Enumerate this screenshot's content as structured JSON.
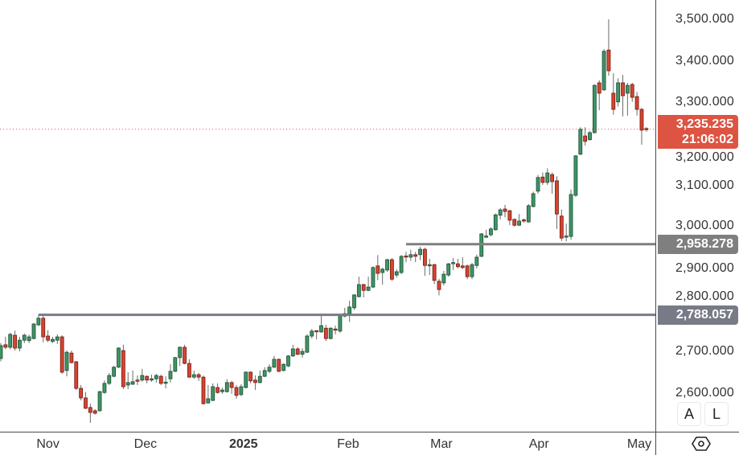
{
  "chart_data": {
    "type": "candlestick",
    "title": "",
    "price_axis": {
      "ticks": [
        "2,600.000",
        "2,700.000",
        "2,800.000",
        "2,900.000",
        "3,000.000",
        "3,100.000",
        "3,200.000",
        "3,300.000",
        "3,400.000",
        "3,500.000"
      ],
      "tick_values": [
        2600,
        2700,
        2800,
        2900,
        3000,
        3100,
        3200,
        3300,
        3400,
        3500
      ],
      "ylim": [
        2506.6,
        3546.5
      ]
    },
    "time_axis": {
      "labels": [
        {
          "text": "Nov",
          "candle_index": 10,
          "year": false
        },
        {
          "text": "Dec",
          "candle_index": 30.7,
          "year": false
        },
        {
          "text": "2025",
          "candle_index": 51.5,
          "year": true
        },
        {
          "text": "Feb",
          "candle_index": 73.7,
          "year": false
        },
        {
          "text": "Mar",
          "candle_index": 93.5,
          "year": false
        },
        {
          "text": "Apr",
          "candle_index": 114.2,
          "year": false
        },
        {
          "text": "May",
          "candle_index": 135.5,
          "year": false
        }
      ]
    },
    "candles": [
      [
        2683,
        2720,
        2676,
        2714
      ],
      [
        2716,
        2735,
        2705,
        2710
      ],
      [
        2710,
        2745,
        2705,
        2741
      ],
      [
        2739,
        2750,
        2702,
        2708
      ],
      [
        2708,
        2735,
        2700,
        2727
      ],
      [
        2727,
        2743,
        2720,
        2739
      ],
      [
        2726,
        2740,
        2720,
        2735
      ],
      [
        2731,
        2768,
        2729,
        2766
      ],
      [
        2764,
        2788,
        2761,
        2780
      ],
      [
        2780,
        2788,
        2722,
        2735
      ],
      [
        2737,
        2751,
        2722,
        2727
      ],
      [
        2724,
        2735,
        2720,
        2729
      ],
      [
        2727,
        2741,
        2718,
        2735
      ],
      [
        2735,
        2739,
        2646,
        2650
      ],
      [
        2654,
        2702,
        2640,
        2698
      ],
      [
        2696,
        2702,
        2671,
        2673
      ],
      [
        2675,
        2677,
        2607,
        2611
      ],
      [
        2611,
        2619,
        2582,
        2588
      ],
      [
        2588,
        2602,
        2561,
        2563
      ],
      [
        2565,
        2574,
        2528,
        2553
      ],
      [
        2557,
        2561,
        2548,
        2551
      ],
      [
        2557,
        2605,
        2555,
        2603
      ],
      [
        2601,
        2630,
        2598,
        2623
      ],
      [
        2623,
        2648,
        2619,
        2642
      ],
      [
        2640,
        2665,
        2638,
        2662
      ],
      [
        2662,
        2710,
        2660,
        2708
      ],
      [
        2702,
        2716,
        2609,
        2615
      ],
      [
        2619,
        2650,
        2609,
        2625
      ],
      [
        2621,
        2654,
        2619,
        2627
      ],
      [
        2631,
        2642,
        2619,
        2629
      ],
      [
        2631,
        2658,
        2627,
        2642
      ],
      [
        2640,
        2642,
        2623,
        2631
      ],
      [
        2631,
        2644,
        2627,
        2634
      ],
      [
        2634,
        2646,
        2625,
        2642
      ],
      [
        2640,
        2644,
        2619,
        2623
      ],
      [
        2625,
        2640,
        2611,
        2626
      ],
      [
        2634,
        2669,
        2625,
        2652
      ],
      [
        2652,
        2687,
        2650,
        2685
      ],
      [
        2685,
        2712,
        2665,
        2710
      ],
      [
        2710,
        2716,
        2669,
        2671
      ],
      [
        2671,
        2681,
        2636,
        2638
      ],
      [
        2638,
        2654,
        2634,
        2644
      ],
      [
        2644,
        2648,
        2629,
        2638
      ],
      [
        2638,
        2642,
        2572,
        2574
      ],
      [
        2576,
        2619,
        2574,
        2586
      ],
      [
        2582,
        2623,
        2580,
        2615
      ],
      [
        2613,
        2623,
        2598,
        2601
      ],
      [
        2603,
        2613,
        2598,
        2607
      ],
      [
        2603,
        2633,
        2601,
        2625
      ],
      [
        2625,
        2629,
        2598,
        2613
      ],
      [
        2613,
        2619,
        2586,
        2594
      ],
      [
        2596,
        2621,
        2592,
        2615
      ],
      [
        2613,
        2652,
        2611,
        2650
      ],
      [
        2650,
        2652,
        2623,
        2629
      ],
      [
        2631,
        2642,
        2607,
        2625
      ],
      [
        2625,
        2654,
        2623,
        2640
      ],
      [
        2640,
        2662,
        2638,
        2654
      ],
      [
        2652,
        2669,
        2648,
        2662
      ],
      [
        2662,
        2689,
        2660,
        2681
      ],
      [
        2681,
        2683,
        2650,
        2652
      ],
      [
        2654,
        2671,
        2652,
        2669
      ],
      [
        2665,
        2691,
        2662,
        2689
      ],
      [
        2689,
        2716,
        2687,
        2706
      ],
      [
        2706,
        2710,
        2691,
        2693
      ],
      [
        2693,
        2708,
        2685,
        2700
      ],
      [
        2698,
        2741,
        2696,
        2737
      ],
      [
        2737,
        2754,
        2731,
        2749
      ],
      [
        2750,
        2751,
        2729,
        2749
      ],
      [
        2747,
        2787,
        2745,
        2762
      ],
      [
        2756,
        2764,
        2725,
        2731
      ],
      [
        2731,
        2758,
        2729,
        2756
      ],
      [
        2754,
        2762,
        2741,
        2751
      ],
      [
        2749,
        2791,
        2745,
        2787
      ],
      [
        2785,
        2805,
        2782,
        2791
      ],
      [
        2791,
        2822,
        2771,
        2807
      ],
      [
        2805,
        2838,
        2800,
        2836
      ],
      [
        2832,
        2880,
        2830,
        2861
      ],
      [
        2861,
        2863,
        2830,
        2847
      ],
      [
        2847,
        2880,
        2845,
        2855
      ],
      [
        2855,
        2905,
        2853,
        2902
      ],
      [
        2906,
        2932,
        2872,
        2888
      ],
      [
        2890,
        2902,
        2861,
        2898
      ],
      [
        2896,
        2923,
        2892,
        2921
      ],
      [
        2921,
        2925,
        2870,
        2874
      ],
      [
        2884,
        2898,
        2878,
        2892
      ],
      [
        2890,
        2932,
        2886,
        2929
      ],
      [
        2930,
        2940,
        2915,
        2929
      ],
      [
        2927,
        2945,
        2918,
        2933
      ],
      [
        2933,
        2940,
        2915,
        2929
      ],
      [
        2933,
        2952,
        2920,
        2946
      ],
      [
        2946,
        2950,
        2882,
        2907
      ],
      [
        2909,
        2923,
        2884,
        2909
      ],
      [
        2909,
        2911,
        2862,
        2871
      ],
      [
        2869,
        2875,
        2835,
        2849
      ],
      [
        2865,
        2894,
        2859,
        2886
      ],
      [
        2884,
        2913,
        2880,
        2911
      ],
      [
        2913,
        2925,
        2896,
        2914
      ],
      [
        2911,
        2923,
        2900,
        2904
      ],
      [
        2906,
        2927,
        2898,
        2902
      ],
      [
        2906,
        2909,
        2874,
        2880
      ],
      [
        2880,
        2913,
        2874,
        2909
      ],
      [
        2907,
        2933,
        2900,
        2927
      ],
      [
        2929,
        2985,
        2927,
        2983
      ],
      [
        2977,
        2993,
        2973,
        2978
      ],
      [
        2981,
        2999,
        2977,
        2995
      ],
      [
        2993,
        3032,
        2991,
        3029
      ],
      [
        3028,
        3045,
        3018,
        3041
      ],
      [
        3043,
        3053,
        3023,
        3037
      ],
      [
        3039,
        3041,
        3004,
        3016
      ],
      [
        3018,
        3020,
        3000,
        3004
      ],
      [
        3004,
        3031,
        3002,
        3014
      ],
      [
        3017,
        3020,
        3010,
        3016
      ],
      [
        3012,
        3055,
        3010,
        3051
      ],
      [
        3049,
        3085,
        3047,
        3080
      ],
      [
        3086,
        3125,
        3080,
        3119
      ],
      [
        3120,
        3131,
        3101,
        3107
      ],
      [
        3107,
        3141,
        3101,
        3130
      ],
      [
        3126,
        3131,
        3080,
        3109
      ],
      [
        3111,
        3122,
        2995,
        3031
      ],
      [
        3026,
        3042,
        2966,
        2973
      ],
      [
        2977,
        3008,
        2965,
        2978
      ],
      [
        2977,
        3090,
        2969,
        3078
      ],
      [
        3076,
        3173,
        3072,
        3171
      ],
      [
        3175,
        3240,
        3173,
        3235
      ],
      [
        3219,
        3240,
        3196,
        3206
      ],
      [
        3210,
        3231,
        3208,
        3227
      ],
      [
        3227,
        3343,
        3225,
        3341
      ],
      [
        3347,
        3353,
        3281,
        3322
      ],
      [
        3330,
        3428,
        3328,
        3423
      ],
      [
        3426,
        3500,
        3364,
        3376
      ],
      [
        3322,
        3370,
        3270,
        3283
      ],
      [
        3301,
        3358,
        3290,
        3347
      ],
      [
        3347,
        3366,
        3266,
        3316
      ],
      [
        3322,
        3347,
        3268,
        3341
      ],
      [
        3343,
        3347,
        3301,
        3312
      ],
      [
        3314,
        3325,
        3268,
        3283
      ],
      [
        3283,
        3287,
        3198,
        3233
      ],
      [
        3237,
        3240,
        3229,
        3235.235
      ]
    ],
    "horizontal_levels": [
      {
        "value": 2958.278,
        "label": "2,958.278",
        "start_candle": 86,
        "color": "#7f7f7f"
      },
      {
        "value": 2788.057,
        "label": "2,788.057",
        "start_candle": 8,
        "color": "#787b86"
      }
    ],
    "last_price": {
      "value": 3235.235,
      "label": "3,235.235",
      "countdown": "21:06:02",
      "color": "#dd5442"
    },
    "colors": {
      "up_fill": "#3f9465",
      "up_border": "#1c4d33",
      "down_fill": "#d8432f",
      "down_border": "#6e1d13",
      "wick": "#6b6b6b"
    }
  },
  "controls": {
    "auto_label": "A",
    "log_label": "L",
    "settings_icon": "settings-icon"
  }
}
